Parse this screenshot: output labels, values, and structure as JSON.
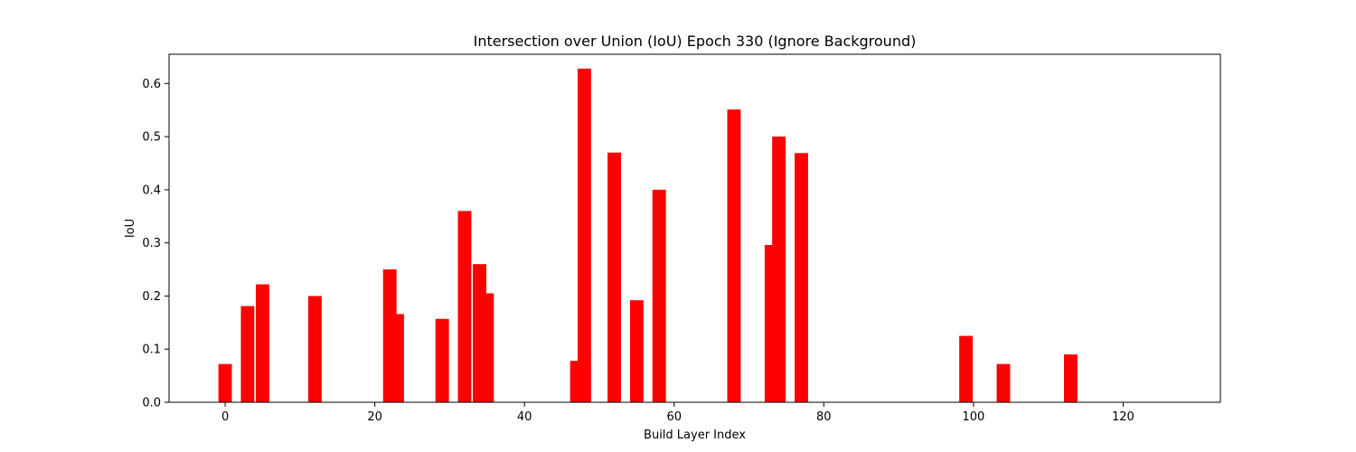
{
  "chart_data": {
    "type": "bar",
    "title": "Intersection over Union (IoU) Epoch 330 (Ignore Background)",
    "xlabel": "Build Layer Index",
    "ylabel": "IoU",
    "xlim": [
      -7.5,
      133
    ],
    "ylim": [
      0,
      0.655
    ],
    "xticks": [
      0,
      20,
      40,
      60,
      80,
      100,
      120
    ],
    "yticks": [
      0.0,
      0.1,
      0.2,
      0.3,
      0.4,
      0.5,
      0.6
    ],
    "bar_width": 1.8,
    "color": "#ff0000",
    "grid": false,
    "x": [
      0,
      3,
      5,
      12,
      22,
      23,
      29,
      32,
      34,
      35,
      47,
      48,
      52,
      55,
      58,
      68,
      73,
      74,
      77,
      99,
      104,
      113
    ],
    "values": [
      0.072,
      0.181,
      0.222,
      0.2,
      0.25,
      0.166,
      0.157,
      0.36,
      0.26,
      0.205,
      0.078,
      0.628,
      0.47,
      0.192,
      0.4,
      0.551,
      0.296,
      0.5,
      0.469,
      0.125,
      0.072,
      0.09
    ]
  }
}
